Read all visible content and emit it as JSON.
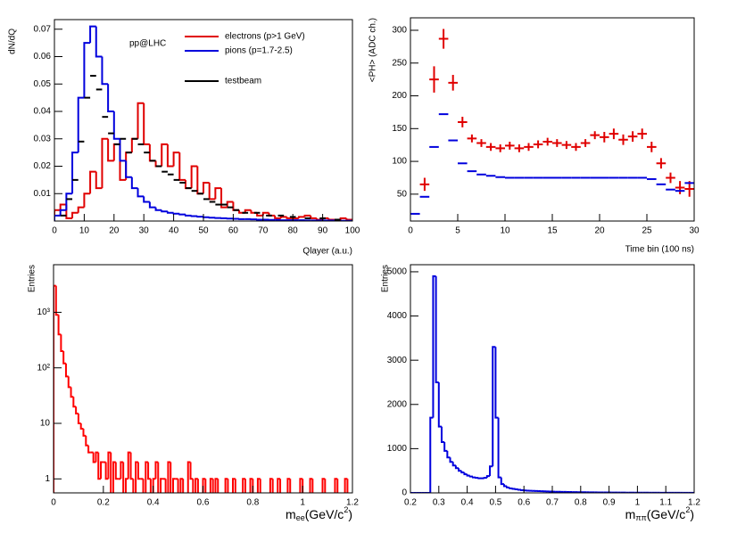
{
  "chart_data": [
    {
      "type": "histogram",
      "y_label": "dN/dQ",
      "x_label": "Qlayer (a.u.)",
      "annotation": "pp@LHC",
      "xlim": [
        0,
        100
      ],
      "xticks": [
        0,
        10,
        20,
        30,
        40,
        50,
        60,
        70,
        80,
        90,
        100
      ],
      "ylim": [
        0,
        0.0735
      ],
      "yticks": [
        0.01,
        0.02,
        0.03,
        0.04,
        0.05,
        0.06,
        0.07
      ],
      "bins": [
        0,
        2,
        4,
        6,
        8,
        10,
        12,
        14,
        16,
        18,
        20,
        22,
        24,
        26,
        28,
        30,
        32,
        34,
        36,
        38,
        40,
        42,
        44,
        46,
        48,
        50,
        52,
        54,
        56,
        58,
        60,
        62,
        64,
        66,
        68,
        70,
        72,
        74,
        76,
        78,
        80,
        82,
        84,
        86,
        88,
        90,
        92,
        94,
        96,
        98,
        100
      ],
      "series": [
        {
          "name": "electrons (p>1 GeV)",
          "color": "#e00000",
          "values": [
            0.004,
            0.006,
            0.001,
            0.003,
            0.005,
            0.01,
            0.018,
            0.012,
            0.03,
            0.022,
            0.028,
            0.015,
            0.025,
            0.03,
            0.043,
            0.028,
            0.022,
            0.02,
            0.028,
            0.02,
            0.025,
            0.015,
            0.012,
            0.02,
            0.01,
            0.014,
            0.008,
            0.012,
            0.005,
            0.007,
            0.004,
            0.003,
            0.004,
            0.003,
            0.002,
            0.003,
            0.002,
            0.001,
            0.0015,
            0.001,
            0.001,
            0.0015,
            0.002,
            0.001,
            0.0005,
            0.001,
            0.0005,
            0.0002,
            0.001,
            0.0005
          ]
        },
        {
          "name": "pions (p=1.7-2.5)",
          "color": "#0000dd",
          "values": [
            0.002,
            0.004,
            0.01,
            0.025,
            0.045,
            0.065,
            0.071,
            0.06,
            0.05,
            0.04,
            0.03,
            0.022,
            0.016,
            0.012,
            0.009,
            0.007,
            0.005,
            0.004,
            0.0035,
            0.003,
            0.0027,
            0.0024,
            0.002,
            0.0018,
            0.0016,
            0.0014,
            0.0012,
            0.0011,
            0.001,
            0.0009,
            0.0008,
            0.0007,
            0.0007,
            0.0006,
            0.0005,
            0.0005,
            0.0004,
            0.0004,
            0.0003,
            0.0003,
            0.0003,
            0.0003,
            0.0002,
            0.0002,
            0.0002,
            0.0002,
            0.0002,
            0.0001,
            0.0001,
            0.0001
          ]
        },
        {
          "name": "testbeam",
          "color": "#000000",
          "marker": "dash",
          "x": [
            3,
            5,
            7,
            9,
            11,
            13,
            15,
            17,
            19,
            21,
            23,
            25,
            27,
            29,
            31,
            33,
            35,
            37,
            39,
            41,
            43,
            45,
            47,
            49,
            51,
            53,
            55,
            57,
            59,
            61,
            64,
            68,
            72,
            76,
            80,
            85,
            90,
            95
          ],
          "values": [
            0.002,
            0.008,
            0.015,
            0.029,
            0.045,
            0.053,
            0.048,
            0.038,
            0.032,
            0.028,
            0.03,
            0.025,
            0.03,
            0.028,
            0.025,
            0.022,
            0.02,
            0.018,
            0.017,
            0.015,
            0.014,
            0.012,
            0.011,
            0.01,
            0.008,
            0.007,
            0.006,
            0.006,
            0.005,
            0.004,
            0.003,
            0.003,
            0.002,
            0.002,
            0.0015,
            0.001,
            0.001,
            0.0005
          ]
        }
      ]
    },
    {
      "type": "scatter",
      "y_label": "<PH> (ADC ch.)",
      "x_label": "Time bin (100 ns)",
      "xlim": [
        0,
        30
      ],
      "xticks": [
        0,
        5,
        10,
        15,
        20,
        25,
        30
      ],
      "ylim": [
        9,
        319
      ],
      "yticks": [
        50,
        100,
        150,
        200,
        250,
        300
      ],
      "series": [
        {
          "color": "#e00000",
          "marker": "cross",
          "x": [
            1.5,
            2.5,
            3.5,
            4.5,
            5.5,
            6.5,
            7.5,
            8.5,
            9.5,
            10.5,
            11.5,
            12.5,
            13.5,
            14.5,
            15.5,
            16.5,
            17.5,
            18.5,
            19.5,
            20.5,
            21.5,
            22.5,
            23.5,
            24.5,
            25.5,
            26.5,
            27.5,
            28.5,
            29.5
          ],
          "values": [
            65,
            225,
            287,
            220,
            160,
            135,
            128,
            122,
            120,
            124,
            120,
            122,
            126,
            130,
            128,
            125,
            122,
            128,
            140,
            137,
            142,
            133,
            138,
            142,
            122,
            97,
            75,
            60,
            58
          ],
          "errors": [
            10,
            20,
            15,
            12,
            8,
            6,
            6,
            6,
            6,
            6,
            6,
            6,
            6,
            6,
            6,
            6,
            6,
            6,
            6,
            8,
            8,
            8,
            8,
            8,
            8,
            8,
            8,
            10,
            12
          ]
        },
        {
          "color": "#0000dd",
          "marker": "dash",
          "x": [
            0.5,
            1.5,
            2.5,
            3.5,
            4.5,
            5.5,
            6.5,
            7.5,
            8.5,
            9.5,
            10.5,
            11.5,
            12.5,
            13.5,
            14.5,
            15.5,
            16.5,
            17.5,
            18.5,
            19.5,
            20.5,
            21.5,
            22.5,
            23.5,
            24.5,
            25.5,
            26.5,
            27.5,
            28.5,
            29.5
          ],
          "values": [
            20,
            46,
            122,
            172,
            132,
            97,
            85,
            80,
            78,
            76,
            75,
            75,
            75,
            75,
            75,
            75,
            75,
            75,
            75,
            75,
            75,
            75,
            75,
            75,
            75,
            73,
            65,
            57,
            55,
            67
          ]
        }
      ]
    },
    {
      "type": "histogram",
      "log_y": true,
      "y_label": "Entries",
      "x_label": {
        "symbol": "m",
        "subscript": "ee",
        "unit": "(GeV/c",
        "superscript": "2",
        "close": ")"
      },
      "xlim": [
        0,
        1.2
      ],
      "xticks": [
        0,
        0.2,
        0.4,
        0.6,
        0.8,
        1,
        1.2
      ],
      "ylim": [
        0.56,
        7200
      ],
      "yticks": [
        1,
        10,
        {
          "value": 100,
          "label": "10²"
        },
        {
          "value": 1000,
          "label": "10³"
        }
      ],
      "bins": [
        0,
        0.01,
        0.02,
        0.03,
        0.04,
        0.05,
        0.06,
        0.07,
        0.08,
        0.09,
        0.1,
        0.11,
        0.12,
        0.13,
        0.14,
        0.15,
        0.16,
        0.17,
        0.18,
        0.19,
        0.2,
        0.21,
        0.22,
        0.23,
        0.24,
        0.25,
        0.26,
        0.27,
        0.28,
        0.29,
        0.3,
        0.31,
        0.32,
        0.33,
        0.34,
        0.35,
        0.36,
        0.37,
        0.38,
        0.39,
        0.4,
        0.41,
        0.42,
        0.43,
        0.44,
        0.45,
        0.46,
        0.47,
        0.48,
        0.49,
        0.5,
        0.51,
        0.52,
        0.53,
        0.54,
        0.55,
        0.56,
        0.57,
        0.58,
        0.59,
        0.6,
        0.61,
        0.62,
        0.63,
        0.64,
        0.65,
        0.66,
        0.67,
        0.68,
        0.69,
        0.7,
        0.71,
        0.72,
        0.73,
        0.74,
        0.75,
        0.76,
        0.77,
        0.78,
        0.79,
        0.8,
        0.81,
        0.82,
        0.83,
        0.84,
        0.85,
        0.86,
        0.87,
        0.88,
        0.89,
        0.9,
        0.91,
        0.92,
        0.93,
        0.94,
        0.95,
        0.96,
        0.97,
        0.98,
        0.99,
        1,
        1.01,
        1.02,
        1.03,
        1.04,
        1.05,
        1.06,
        1.07,
        1.08,
        1.09,
        1.1,
        1.11,
        1.12,
        1.13,
        1.14,
        1.15,
        1.16,
        1.17,
        1.18,
        1.19,
        1.2
      ],
      "series": [
        {
          "color": "#ff0000",
          "values": [
            3000,
            900,
            400,
            200,
            120,
            70,
            45,
            30,
            20,
            15,
            10,
            8,
            6,
            4,
            3,
            3,
            2,
            3,
            1,
            2,
            2,
            1,
            3,
            0,
            2,
            1,
            1,
            2,
            0,
            1,
            3,
            1,
            0,
            2,
            1,
            1,
            0,
            2,
            1,
            0,
            1,
            2,
            0,
            1,
            1,
            0,
            2,
            0,
            1,
            1,
            0,
            1,
            0,
            0,
            2,
            1,
            0,
            1,
            0,
            0,
            1,
            0,
            0,
            1,
            0,
            1,
            0,
            0,
            0,
            1,
            0,
            0,
            1,
            0,
            0,
            0,
            1,
            0,
            0,
            1,
            0,
            0,
            1,
            0,
            0,
            0,
            0,
            1,
            0,
            0,
            1,
            0,
            0,
            0,
            1,
            0,
            0,
            0,
            0,
            1,
            0,
            0,
            0,
            1,
            0,
            0,
            0,
            0,
            1,
            0,
            0,
            0,
            0,
            1,
            0,
            0,
            0,
            1,
            0,
            0
          ]
        }
      ]
    },
    {
      "type": "histogram",
      "y_label": "Entries",
      "x_label": {
        "symbol": "m",
        "subscript": "ππ",
        "unit": "(GeV/c",
        "superscript": "2",
        "close": ")"
      },
      "xlim": [
        0.2,
        1.2
      ],
      "xticks": [
        0.2,
        0.3,
        0.4,
        0.5,
        0.6,
        0.7,
        0.8,
        0.9,
        1,
        1.1,
        1.2
      ],
      "ylim": [
        0,
        5160
      ],
      "yticks": [
        0,
        1000,
        2000,
        3000,
        4000,
        5000
      ],
      "bins": [
        0.2,
        0.21,
        0.22,
        0.23,
        0.24,
        0.25,
        0.26,
        0.27,
        0.28,
        0.29,
        0.3,
        0.31,
        0.32,
        0.33,
        0.34,
        0.35,
        0.36,
        0.37,
        0.38,
        0.39,
        0.4,
        0.41,
        0.42,
        0.43,
        0.44,
        0.45,
        0.46,
        0.47,
        0.48,
        0.49,
        0.5,
        0.51,
        0.52,
        0.53,
        0.54,
        0.55,
        0.56,
        0.57,
        0.58,
        0.59,
        0.6,
        0.61,
        0.62,
        0.63,
        0.64,
        0.65,
        0.66,
        0.67,
        0.68,
        0.69,
        0.7,
        0.71,
        0.72,
        0.73,
        0.74,
        0.75,
        0.76,
        0.77,
        0.78,
        0.79,
        0.8,
        0.81,
        0.82,
        0.83,
        0.84,
        0.85,
        0.86,
        0.87,
        0.88,
        0.89,
        0.9,
        0.91,
        0.92,
        0.93,
        0.94,
        0.95,
        0.96,
        0.97,
        0.98,
        0.99,
        1,
        1.01,
        1.02,
        1.03,
        1.04,
        1.05,
        1.06,
        1.07,
        1.08,
        1.09,
        1.1,
        1.11,
        1.12,
        1.13,
        1.14,
        1.15,
        1.16,
        1.17,
        1.18,
        1.19,
        1.2
      ],
      "series": [
        {
          "color": "#0000dd",
          "values": [
            0,
            0,
            0,
            0,
            0,
            0,
            0,
            1700,
            4900,
            2500,
            1500,
            1150,
            950,
            800,
            700,
            620,
            560,
            500,
            460,
            420,
            390,
            370,
            350,
            340,
            330,
            330,
            340,
            380,
            600,
            3300,
            1700,
            350,
            200,
            150,
            120,
            100,
            90,
            80,
            70,
            60,
            55,
            50,
            48,
            45,
            42,
            40,
            38,
            35,
            33,
            30,
            28,
            26,
            25,
            23,
            22,
            20,
            19,
            18,
            17,
            16,
            15,
            14,
            14,
            13,
            12,
            12,
            11,
            10,
            10,
            9,
            9,
            8,
            8,
            7,
            7,
            7,
            6,
            6,
            6,
            5,
            5,
            5,
            5,
            4,
            4,
            4,
            4,
            4,
            3,
            3,
            3,
            3,
            3,
            3,
            3,
            2,
            2,
            2,
            2,
            2
          ]
        }
      ]
    }
  ]
}
